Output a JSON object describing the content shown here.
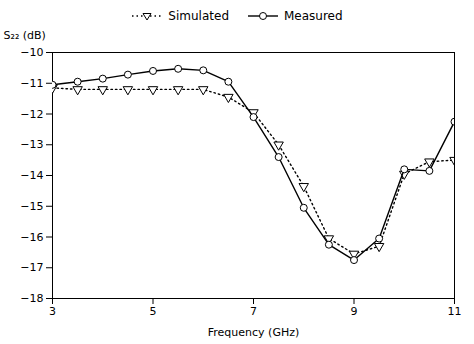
{
  "chart_data": {
    "type": "line",
    "xlabel": "Frequency (GHz)",
    "ylabel": "S₂₂ (dB)",
    "xlim": [
      3,
      11
    ],
    "ylim": [
      -18,
      -10
    ],
    "xticks": [
      3,
      5,
      7,
      9,
      11
    ],
    "yticks": [
      -18,
      -17,
      -16,
      -15,
      -14,
      -13,
      -12,
      -11,
      -10
    ],
    "grid": false,
    "legend": "top",
    "series": [
      {
        "name": "Simulated",
        "color": "black",
        "marker": "triangle-down",
        "line_style": "dotted",
        "x": [
          3.0,
          3.5,
          4.0,
          4.5,
          5.0,
          5.5,
          6.0,
          6.5,
          7.0,
          7.5,
          8.0,
          8.5,
          9.0,
          9.5,
          10.0,
          10.5,
          11.0
        ],
        "values": [
          -11.15,
          -11.2,
          -11.2,
          -11.2,
          -11.2,
          -11.2,
          -11.2,
          -11.45,
          -11.95,
          -13.0,
          -14.35,
          -16.05,
          -16.55,
          -16.3,
          -13.95,
          -13.55,
          -13.5
        ]
      },
      {
        "name": "Measured",
        "color": "black",
        "marker": "circle",
        "line_style": "solid",
        "x": [
          3.0,
          3.5,
          4.0,
          4.5,
          5.0,
          5.5,
          6.0,
          6.5,
          7.0,
          7.5,
          8.0,
          8.5,
          9.0,
          9.5,
          10.0,
          10.5,
          11.0
        ],
        "values": [
          -11.05,
          -10.95,
          -10.85,
          -10.72,
          -10.6,
          -10.53,
          -10.58,
          -10.95,
          -12.1,
          -13.4,
          -15.05,
          -16.25,
          -16.75,
          -16.05,
          -13.8,
          -13.85,
          -12.25
        ]
      }
    ]
  }
}
